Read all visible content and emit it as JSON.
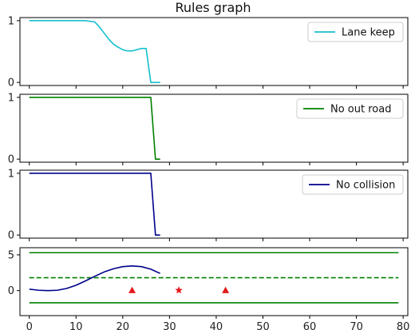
{
  "title": "Rules graph",
  "x_tick_labels": [
    "0",
    "10",
    "20",
    "30",
    "40",
    "50",
    "60",
    "70",
    "80"
  ],
  "chart_data": [
    {
      "type": "line",
      "name": "lane-keep",
      "xlim": [
        -2,
        81
      ],
      "ylim": [
        -0.05,
        1.05
      ],
      "y_ticks": [
        0,
        1
      ],
      "x_ticks": [
        0,
        10,
        20,
        30,
        40,
        50,
        60,
        70,
        80
      ],
      "x_tick_labels_shown": false,
      "legend": "upper right",
      "series": [
        {
          "name": "Lane keep",
          "color": "#17becf",
          "x": [
            0,
            2,
            4,
            6,
            8,
            10,
            12,
            14,
            15,
            16,
            17,
            18,
            19,
            20,
            21,
            22,
            23,
            24,
            25,
            26,
            27,
            28
          ],
          "y": [
            1,
            1,
            1,
            1,
            1,
            1,
            1,
            0.98,
            0.9,
            0.8,
            0.7,
            0.62,
            0.57,
            0.53,
            0.51,
            0.51,
            0.53,
            0.55,
            0.55,
            0.0,
            0.0,
            0.0
          ]
        }
      ]
    },
    {
      "type": "line",
      "name": "no-out-road",
      "xlim": [
        -2,
        81
      ],
      "ylim": [
        -0.05,
        1.05
      ],
      "y_ticks": [
        0,
        1
      ],
      "x_ticks": [
        0,
        10,
        20,
        30,
        40,
        50,
        60,
        70,
        80
      ],
      "x_tick_labels_shown": false,
      "legend": "upper right",
      "series": [
        {
          "name": "No out road",
          "color": "#008000",
          "x": [
            0,
            5,
            10,
            15,
            20,
            25,
            26,
            27,
            28
          ],
          "y": [
            1,
            1,
            1,
            1,
            1,
            1,
            1,
            0,
            0
          ]
        }
      ]
    },
    {
      "type": "line",
      "name": "no-collision",
      "xlim": [
        -2,
        81
      ],
      "ylim": [
        -0.05,
        1.05
      ],
      "y_ticks": [
        0,
        1
      ],
      "x_ticks": [
        0,
        10,
        20,
        30,
        40,
        50,
        60,
        70,
        80
      ],
      "x_tick_labels_shown": false,
      "legend": "upper right",
      "series": [
        {
          "name": "No collision",
          "color": "#00008b",
          "x": [
            0,
            5,
            10,
            15,
            20,
            25,
            26,
            27,
            28
          ],
          "y": [
            1,
            1,
            1,
            1,
            1,
            1,
            1,
            0,
            0
          ]
        }
      ]
    },
    {
      "type": "line",
      "name": "road-map",
      "xlim": [
        -2,
        81
      ],
      "ylim": [
        -3.5,
        6.0
      ],
      "y_ticks": [
        0,
        5
      ],
      "x_ticks": [
        0,
        10,
        20,
        30,
        40,
        50,
        60,
        70,
        80
      ],
      "x_tick_labels_shown": true,
      "series": [
        {
          "color": "#008000",
          "style": "solid",
          "x": [
            0,
            79
          ],
          "y": [
            5.3,
            5.3
          ]
        },
        {
          "color": "#008000",
          "style": "dashed",
          "x": [
            0,
            79
          ],
          "y": [
            1.8,
            1.8
          ]
        },
        {
          "color": "#008000",
          "style": "solid",
          "x": [
            0,
            79
          ],
          "y": [
            -1.7,
            -1.7
          ]
        },
        {
          "color": "#00008b",
          "style": "solid",
          "x": [
            0,
            2,
            4,
            6,
            8,
            10,
            12,
            14,
            16,
            18,
            20,
            22,
            24,
            26,
            28
          ],
          "y": [
            0.2,
            0.05,
            0.0,
            0.05,
            0.3,
            0.75,
            1.35,
            2.0,
            2.6,
            3.05,
            3.35,
            3.45,
            3.35,
            3.0,
            2.4
          ]
        }
      ],
      "markers": [
        {
          "shape": "triangle",
          "color": "#e31a1c",
          "x": 22,
          "y": 0.05
        },
        {
          "shape": "star",
          "color": "#e31a1c",
          "x": 32,
          "y": 0.05
        },
        {
          "shape": "triangle",
          "color": "#e31a1c",
          "x": 42,
          "y": 0.05
        }
      ]
    }
  ]
}
